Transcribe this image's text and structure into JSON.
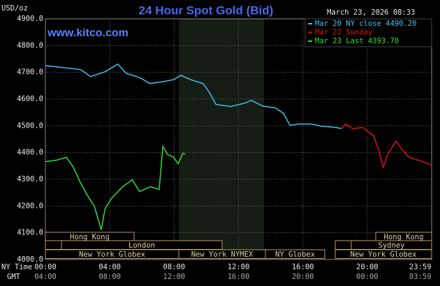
{
  "chart_data": {
    "type": "line",
    "title": "24 Hour Spot Gold (Bid)",
    "y_label": "USD/oz",
    "timestamp": "March 23, 2026 08:33",
    "website": "www.kitco.com",
    "x_label": "NY Time",
    "x2_label": "GMT",
    "xlim": [
      0,
      24
    ],
    "xticks": [
      {
        "value": 0,
        "label": "00:00"
      },
      {
        "value": 4,
        "label": "04:00"
      },
      {
        "value": 8,
        "label": "08:00"
      },
      {
        "value": 12,
        "label": "12:00"
      },
      {
        "value": 16,
        "label": "16:00"
      },
      {
        "value": 20,
        "label": "20:00"
      },
      {
        "value": 23.98,
        "label": "23:59"
      }
    ],
    "x2ticks": [
      {
        "value": 0,
        "label": "04:00"
      },
      {
        "value": 4,
        "label": "08:00"
      },
      {
        "value": 8,
        "label": "12:00"
      },
      {
        "value": 12,
        "label": "16:00"
      },
      {
        "value": 16,
        "label": "20:00"
      },
      {
        "value": 20,
        "label": "00:00"
      },
      {
        "value": 23.98,
        "label": "03:59"
      }
    ],
    "ylim": [
      4000,
      4900
    ],
    "yticks": [
      {
        "value": 4000,
        "label": "4000.0"
      },
      {
        "value": 4100,
        "label": "4100.0"
      },
      {
        "value": 4200,
        "label": "4200.0"
      },
      {
        "value": 4300,
        "label": "4300.0"
      },
      {
        "value": 4400,
        "label": "4400.0"
      },
      {
        "value": 4500,
        "label": "4500.0"
      },
      {
        "value": 4600,
        "label": "4600.0"
      },
      {
        "value": 4700,
        "label": "4700.0"
      },
      {
        "value": 4800,
        "label": "4800.0"
      },
      {
        "value": 4900,
        "label": "4900.0"
      }
    ],
    "grid": true,
    "legend": "top-right",
    "series": [
      {
        "name": "Mar 20 NY close 4490.20",
        "color": "#40c0f0",
        "x": [
          0,
          1.1,
          2.2,
          2.8,
          3.7,
          4.5,
          5,
          5.9,
          6.5,
          7.4,
          8,
          8.4,
          9.1,
          9.8,
          10.2,
          10.6,
          11.5,
          12.4,
          12.8,
          13.5,
          14.3,
          14.8,
          15.2,
          15.8,
          16.5,
          17.1,
          18,
          18.4
        ],
        "values": [
          4725,
          4718,
          4710,
          4684,
          4702,
          4731,
          4697,
          4679,
          4658,
          4666,
          4673,
          4689,
          4671,
          4658,
          4624,
          4580,
          4572,
          4585,
          4595,
          4574,
          4567,
          4546,
          4502,
          4507,
          4507,
          4499,
          4494,
          4490
        ]
      },
      {
        "name": "Mar 22 Sunday",
        "color": "#e01010",
        "x": [
          18.4,
          18.65,
          19.1,
          19.7,
          20.4,
          20.7,
          21,
          21.3,
          21.8,
          22.1,
          22.6,
          23.2,
          24
        ],
        "values": [
          4490,
          4507,
          4489,
          4494,
          4463,
          4410,
          4345,
          4397,
          4442,
          4416,
          4382,
          4371,
          4353
        ]
      },
      {
        "name": "Mar 23 Last 4393.70",
        "color": "#30e030",
        "x": [
          0,
          0.65,
          1.3,
          1.74,
          2.17,
          2.6,
          3.04,
          3.47,
          3.7,
          4.1,
          4.8,
          5.4,
          5.86,
          6.5,
          7.07,
          7.3,
          7.6,
          7.94,
          8.24,
          8.55,
          8.68
        ],
        "values": [
          4366,
          4371,
          4382,
          4345,
          4288,
          4241,
          4200,
          4111,
          4189,
          4228,
          4272,
          4298,
          4254,
          4272,
          4262,
          4423,
          4392,
          4384,
          4358,
          4397,
          4393.7
        ]
      }
    ],
    "sessions": [
      "Hong Kong",
      "London",
      "New York Globex",
      "New York NYMEX",
      "NY Globex",
      "Hong Kong",
      "Sydney",
      "New York Globex"
    ]
  }
}
